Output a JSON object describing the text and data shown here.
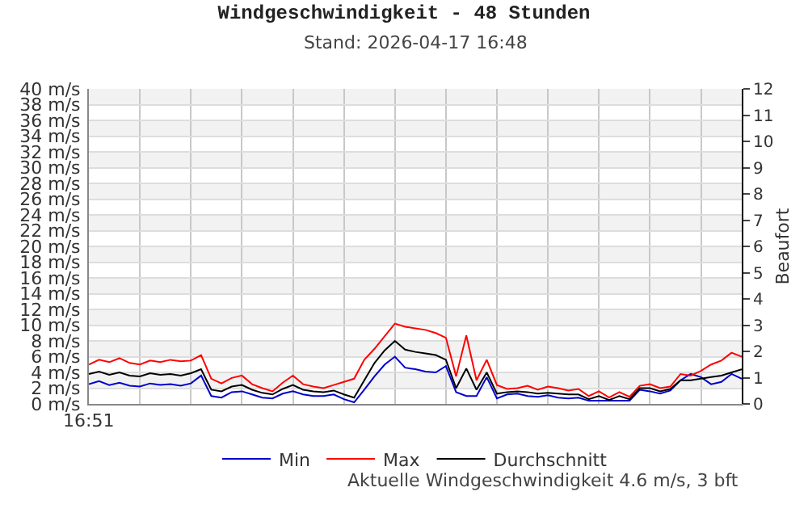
{
  "chart_data": {
    "type": "line",
    "title": "Windgeschwindigkeit - 48 Stunden",
    "subtitle": "Stand: 2026-04-17 16:48",
    "y2label": "Beaufort",
    "annotations": [
      "16:51",
      "Aktuelle Windgeschwindigkeit 4.6 m/s, 3 bft"
    ],
    "y2lim": [
      0,
      12
    ],
    "y2ticks": [
      0,
      1,
      2,
      3,
      4,
      5,
      6,
      7,
      8,
      9,
      10,
      11,
      12
    ],
    "categories": [
      null,
      null,
      null,
      null,
      null,
      null,
      null,
      null,
      null,
      null,
      null,
      null,
      null,
      null,
      null,
      null,
      null,
      null,
      null,
      null,
      null,
      null,
      null,
      null,
      null,
      null,
      null,
      null,
      null,
      null,
      null,
      null,
      null,
      null,
      null,
      null,
      null,
      null,
      null,
      null,
      null,
      null,
      null,
      null,
      null,
      null,
      null,
      null,
      null,
      null,
      null,
      null,
      null,
      null,
      null,
      null,
      null,
      null,
      null,
      null,
      null,
      null,
      null,
      null,
      null
    ],
    "series": [
      {
        "name": "Min",
        "color": "#0000cc",
        "values": [
          2.5,
          2.9,
          2.4,
          2.7,
          2.3,
          2.2,
          2.6,
          2.4,
          2.5,
          2.3,
          2.6,
          3.6,
          1.0,
          0.8,
          1.5,
          1.6,
          1.2,
          0.8,
          0.7,
          1.3,
          1.6,
          1.2,
          1.0,
          1.0,
          1.2,
          0.6,
          0.2,
          1.8,
          3.5,
          5.0,
          6.0,
          4.6,
          4.4,
          4.1,
          4.0,
          4.8,
          1.5,
          1.0,
          1.0,
          3.4,
          0.7,
          1.2,
          1.3,
          1.0,
          0.9,
          1.1,
          0.8,
          0.7,
          0.8,
          0.4,
          0.4,
          0.4,
          0.4,
          0.4,
          1.8,
          1.6,
          1.3,
          1.7,
          3.0,
          3.8,
          3.4,
          2.5,
          2.8,
          3.8,
          3.2
        ]
      },
      {
        "name": "Max",
        "color": "#ff0000",
        "values": [
          5.0,
          5.6,
          5.3,
          5.8,
          5.2,
          5.0,
          5.5,
          5.3,
          5.6,
          5.4,
          5.5,
          6.2,
          3.2,
          2.6,
          3.3,
          3.6,
          2.5,
          2.0,
          1.6,
          2.7,
          3.6,
          2.5,
          2.2,
          2.0,
          2.4,
          2.8,
          3.2,
          5.6,
          7.0,
          8.6,
          10.2,
          9.8,
          9.6,
          9.4,
          9.0,
          8.4,
          3.5,
          8.7,
          3.0,
          5.6,
          2.4,
          1.9,
          2.0,
          2.3,
          1.8,
          2.2,
          2.0,
          1.7,
          1.9,
          1.0,
          1.6,
          0.8,
          1.5,
          0.9,
          2.3,
          2.5,
          2.0,
          2.2,
          3.8,
          3.6,
          4.2,
          5.0,
          5.5,
          6.5,
          6.0
        ]
      },
      {
        "name": "Durchschnitt",
        "color": "#000000",
        "values": [
          3.8,
          4.1,
          3.7,
          4.0,
          3.6,
          3.5,
          3.9,
          3.7,
          3.8,
          3.6,
          3.9,
          4.4,
          1.8,
          1.6,
          2.2,
          2.4,
          1.8,
          1.4,
          1.2,
          1.9,
          2.4,
          1.8,
          1.6,
          1.5,
          1.7,
          1.2,
          0.8,
          3.0,
          5.2,
          6.8,
          8.0,
          6.9,
          6.6,
          6.4,
          6.2,
          5.6,
          2.0,
          4.5,
          1.8,
          4.0,
          1.3,
          1.5,
          1.6,
          1.5,
          1.3,
          1.4,
          1.3,
          1.2,
          1.2,
          0.6,
          1.0,
          0.5,
          1.0,
          0.6,
          2.0,
          2.0,
          1.6,
          1.9,
          3.0,
          3.0,
          3.2,
          3.4,
          3.6,
          4.0,
          4.4
        ]
      }
    ],
    "ylim": [
      0,
      40
    ],
    "yticks": [
      {
        "value": 0,
        "label": "0 m/s"
      },
      {
        "value": 2,
        "label": "2 m/s"
      },
      {
        "value": 4,
        "label": "4 m/s"
      },
      {
        "value": 6,
        "label": "6 m/s"
      },
      {
        "value": 8,
        "label": "8 m/s"
      },
      {
        "value": 10,
        "label": "10 m/s"
      },
      {
        "value": 12,
        "label": "12 m/s"
      },
      {
        "value": 14,
        "label": "14 m/s"
      },
      {
        "value": 16,
        "label": "16 m/s"
      },
      {
        "value": 18,
        "label": "18 m/s"
      },
      {
        "value": 20,
        "label": "20 m/s"
      },
      {
        "value": 22,
        "label": "22 m/s"
      },
      {
        "value": 24,
        "label": "24 m/s"
      },
      {
        "value": 26,
        "label": "26 m/s"
      },
      {
        "value": 28,
        "label": "28 m/s"
      },
      {
        "value": 30,
        "label": "30 m/s"
      },
      {
        "value": 32,
        "label": "32 m/s"
      },
      {
        "value": 34,
        "label": "34 m/s"
      },
      {
        "value": 36,
        "label": "36 m/s"
      },
      {
        "value": 38,
        "label": "38 m/s"
      },
      {
        "value": 40,
        "label": "40 m/s"
      }
    ],
    "bands": [
      {
        "axis": "y",
        "from": 2,
        "to": 4,
        "color": "#f2f2f2"
      },
      {
        "axis": "y",
        "from": 6,
        "to": 8,
        "color": "#f2f2f2"
      },
      {
        "axis": "y",
        "from": 10,
        "to": 12,
        "color": "#f2f2f2"
      },
      {
        "axis": "y",
        "from": 14,
        "to": 16,
        "color": "#f2f2f2"
      },
      {
        "axis": "y",
        "from": 18,
        "to": 20,
        "color": "#f2f2f2"
      },
      {
        "axis": "y",
        "from": 22,
        "to": 24,
        "color": "#f2f2f2"
      },
      {
        "axis": "y",
        "from": 26,
        "to": 28,
        "color": "#f2f2f2"
      },
      {
        "axis": "y",
        "from": 30,
        "to": 32,
        "color": "#f2f2f2"
      },
      {
        "axis": "y",
        "from": 34,
        "to": 36,
        "color": "#f2f2f2"
      },
      {
        "axis": "y",
        "from": 38,
        "to": 40,
        "color": "#f2f2f2"
      }
    ],
    "grid": true,
    "legend": "bottom",
    "tick_labels": "y",
    "marker": "none",
    "line_style": "solid"
  }
}
